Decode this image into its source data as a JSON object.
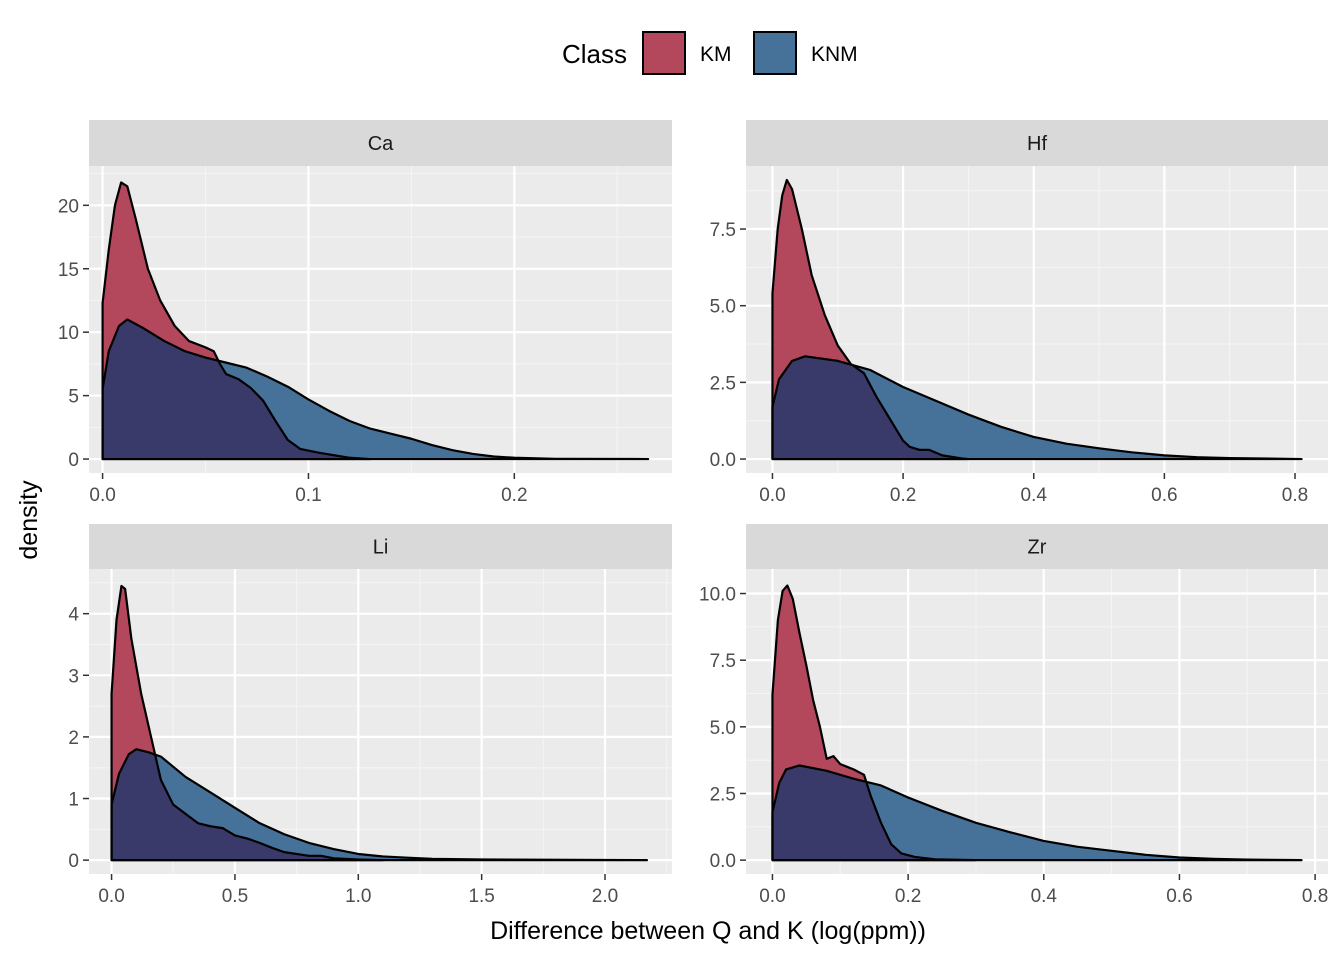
{
  "legend": {
    "title": "Class",
    "position": "top",
    "entries": [
      {
        "label": "KM",
        "color": "#b3475c"
      },
      {
        "label": "KNM",
        "color": "#46729a"
      }
    ]
  },
  "overlap_color": "#3a3a6a",
  "axes": {
    "xlabel": "Difference between Q and K (log(ppm))",
    "ylabel": "density"
  },
  "chart_data": [
    {
      "type": "area",
      "facet": "Ca",
      "xlim": [
        -0.0066,
        0.2766
      ],
      "ylim": [
        -1.1,
        23.1
      ],
      "xticks": [
        0.0,
        0.1,
        0.2
      ],
      "xtick_labels": [
        "0.0",
        "0.1",
        "0.2"
      ],
      "yticks": [
        0,
        5,
        10,
        15,
        20
      ],
      "ytick_labels": [
        "0",
        "5",
        "10",
        "15",
        "20"
      ],
      "grid": true,
      "series": [
        {
          "name": "KM",
          "points": [
            [
              0,
              12.3
            ],
            [
              0.003,
              16.5
            ],
            [
              0.006,
              20
            ],
            [
              0.009,
              21.8
            ],
            [
              0.012,
              21.5
            ],
            [
              0.016,
              19
            ],
            [
              0.022,
              15
            ],
            [
              0.028,
              12.5
            ],
            [
              0.035,
              10.5
            ],
            [
              0.042,
              9.3
            ],
            [
              0.05,
              8.8
            ],
            [
              0.054,
              8.5
            ],
            [
              0.057,
              7.5
            ],
            [
              0.06,
              6.7
            ],
            [
              0.066,
              6.3
            ],
            [
              0.072,
              5.6
            ],
            [
              0.078,
              4.6
            ],
            [
              0.084,
              3
            ],
            [
              0.09,
              1.5
            ],
            [
              0.096,
              0.8
            ],
            [
              0.105,
              0.5
            ],
            [
              0.12,
              0.1
            ],
            [
              0.13,
              0
            ]
          ]
        },
        {
          "name": "KNM",
          "points": [
            [
              0,
              5.5
            ],
            [
              0.003,
              8.5
            ],
            [
              0.008,
              10.5
            ],
            [
              0.012,
              11
            ],
            [
              0.02,
              10.3
            ],
            [
              0.03,
              9.3
            ],
            [
              0.04,
              8.5
            ],
            [
              0.05,
              8
            ],
            [
              0.06,
              7.6
            ],
            [
              0.07,
              7.2
            ],
            [
              0.08,
              6.5
            ],
            [
              0.09,
              5.7
            ],
            [
              0.1,
              4.7
            ],
            [
              0.11,
              3.8
            ],
            [
              0.12,
              3
            ],
            [
              0.13,
              2.4
            ],
            [
              0.14,
              2
            ],
            [
              0.15,
              1.6
            ],
            [
              0.16,
              1.1
            ],
            [
              0.17,
              0.7
            ],
            [
              0.18,
              0.4
            ],
            [
              0.19,
              0.2
            ],
            [
              0.2,
              0.1
            ],
            [
              0.22,
              0.02
            ],
            [
              0.265,
              0
            ]
          ]
        }
      ]
    },
    {
      "type": "area",
      "facet": "Hf",
      "xlim": [
        -0.0405,
        0.8505
      ],
      "ylim": [
        -0.455,
        9.555
      ],
      "xticks": [
        0.0,
        0.2,
        0.4,
        0.6,
        0.8
      ],
      "xtick_labels": [
        "0.0",
        "0.2",
        "0.4",
        "0.6",
        "0.8"
      ],
      "yticks": [
        0,
        2.5,
        5,
        7.5
      ],
      "ytick_labels": [
        "0.0",
        "2.5",
        "5.0",
        "7.5"
      ],
      "grid": true,
      "series": [
        {
          "name": "KM",
          "points": [
            [
              0,
              5.4
            ],
            [
              0.008,
              7.5
            ],
            [
              0.015,
              8.6
            ],
            [
              0.022,
              9.1
            ],
            [
              0.03,
              8.8
            ],
            [
              0.045,
              7.5
            ],
            [
              0.06,
              6
            ],
            [
              0.08,
              4.7
            ],
            [
              0.1,
              3.7
            ],
            [
              0.12,
              3.1
            ],
            [
              0.14,
              2.8
            ],
            [
              0.16,
              2
            ],
            [
              0.18,
              1.3
            ],
            [
              0.2,
              0.6
            ],
            [
              0.21,
              0.4
            ],
            [
              0.225,
              0.3
            ],
            [
              0.24,
              0.3
            ],
            [
              0.26,
              0.12
            ],
            [
              0.29,
              0.02
            ],
            [
              0.3,
              0
            ]
          ]
        },
        {
          "name": "KNM",
          "points": [
            [
              0,
              1.7
            ],
            [
              0.01,
              2.6
            ],
            [
              0.03,
              3.2
            ],
            [
              0.05,
              3.35
            ],
            [
              0.1,
              3.2
            ],
            [
              0.15,
              2.9
            ],
            [
              0.2,
              2.35
            ],
            [
              0.25,
              1.9
            ],
            [
              0.3,
              1.45
            ],
            [
              0.35,
              1.05
            ],
            [
              0.4,
              0.72
            ],
            [
              0.45,
              0.5
            ],
            [
              0.5,
              0.35
            ],
            [
              0.55,
              0.22
            ],
            [
              0.6,
              0.12
            ],
            [
              0.65,
              0.06
            ],
            [
              0.7,
              0.03
            ],
            [
              0.81,
              0
            ]
          ]
        }
      ]
    },
    {
      "type": "area",
      "facet": "Li",
      "xlim": [
        -0.0915,
        2.2715
      ],
      "ylim": [
        -0.225,
        4.725
      ],
      "xticks": [
        0.0,
        0.5,
        1.0,
        1.5,
        2.0
      ],
      "xtick_labels": [
        "0.0",
        "0.5",
        "1.0",
        "1.5",
        "2.0"
      ],
      "yticks": [
        0,
        1,
        2,
        3,
        4
      ],
      "ytick_labels": [
        "0",
        "1",
        "2",
        "3",
        "4"
      ],
      "grid": true,
      "series": [
        {
          "name": "KM",
          "points": [
            [
              0,
              2.7
            ],
            [
              0.02,
              3.9
            ],
            [
              0.04,
              4.45
            ],
            [
              0.055,
              4.4
            ],
            [
              0.08,
              3.6
            ],
            [
              0.12,
              2.7
            ],
            [
              0.16,
              2
            ],
            [
              0.2,
              1.3
            ],
            [
              0.25,
              0.9
            ],
            [
              0.3,
              0.75
            ],
            [
              0.35,
              0.6
            ],
            [
              0.4,
              0.55
            ],
            [
              0.45,
              0.52
            ],
            [
              0.5,
              0.4
            ],
            [
              0.55,
              0.35
            ],
            [
              0.6,
              0.28
            ],
            [
              0.65,
              0.2
            ],
            [
              0.7,
              0.13
            ],
            [
              0.8,
              0.07
            ],
            [
              0.85,
              0.07
            ],
            [
              0.9,
              0.03
            ],
            [
              1.0,
              0.01
            ],
            [
              1.1,
              0
            ]
          ]
        },
        {
          "name": "KNM",
          "points": [
            [
              0,
              0.9
            ],
            [
              0.03,
              1.4
            ],
            [
              0.07,
              1.72
            ],
            [
              0.1,
              1.8
            ],
            [
              0.15,
              1.75
            ],
            [
              0.2,
              1.68
            ],
            [
              0.3,
              1.35
            ],
            [
              0.4,
              1.1
            ],
            [
              0.5,
              0.85
            ],
            [
              0.6,
              0.6
            ],
            [
              0.7,
              0.42
            ],
            [
              0.8,
              0.28
            ],
            [
              0.9,
              0.18
            ],
            [
              1.0,
              0.1
            ],
            [
              1.1,
              0.06
            ],
            [
              1.2,
              0.04
            ],
            [
              1.3,
              0.02
            ],
            [
              1.5,
              0.01
            ],
            [
              2.17,
              0
            ]
          ]
        }
      ]
    },
    {
      "type": "area",
      "facet": "Zr",
      "xlim": [
        -0.039,
        0.819
      ],
      "ylim": [
        -0.52,
        10.92
      ],
      "xticks": [
        0.0,
        0.2,
        0.4,
        0.6,
        0.8
      ],
      "xtick_labels": [
        "0.0",
        "0.2",
        "0.4",
        "0.6",
        "0.8"
      ],
      "yticks": [
        0,
        2.5,
        5,
        7.5,
        10
      ],
      "ytick_labels": [
        "0.0",
        "2.5",
        "5.0",
        "7.5",
        "10.0"
      ],
      "grid": true,
      "series": [
        {
          "name": "KM",
          "points": [
            [
              0,
              6.2
            ],
            [
              0.008,
              9
            ],
            [
              0.015,
              10.1
            ],
            [
              0.022,
              10.3
            ],
            [
              0.03,
              9.8
            ],
            [
              0.04,
              8.5
            ],
            [
              0.05,
              7.3
            ],
            [
              0.06,
              6
            ],
            [
              0.07,
              5
            ],
            [
              0.08,
              3.8
            ],
            [
              0.09,
              3.9
            ],
            [
              0.1,
              3.6
            ],
            [
              0.11,
              3.5
            ],
            [
              0.12,
              3.4
            ],
            [
              0.135,
              3.2
            ],
            [
              0.145,
              2.4
            ],
            [
              0.16,
              1.4
            ],
            [
              0.175,
              0.6
            ],
            [
              0.19,
              0.25
            ],
            [
              0.21,
              0.12
            ],
            [
              0.24,
              0.03
            ],
            [
              0.3,
              0
            ]
          ]
        },
        {
          "name": "KNM",
          "points": [
            [
              0,
              1.8
            ],
            [
              0.01,
              2.9
            ],
            [
              0.02,
              3.4
            ],
            [
              0.04,
              3.55
            ],
            [
              0.08,
              3.35
            ],
            [
              0.12,
              3.05
            ],
            [
              0.16,
              2.8
            ],
            [
              0.2,
              2.35
            ],
            [
              0.25,
              1.85
            ],
            [
              0.3,
              1.4
            ],
            [
              0.35,
              1.05
            ],
            [
              0.4,
              0.72
            ],
            [
              0.45,
              0.5
            ],
            [
              0.5,
              0.35
            ],
            [
              0.55,
              0.2
            ],
            [
              0.6,
              0.1
            ],
            [
              0.65,
              0.05
            ],
            [
              0.7,
              0.02
            ],
            [
              0.78,
              0
            ]
          ]
        }
      ]
    }
  ]
}
